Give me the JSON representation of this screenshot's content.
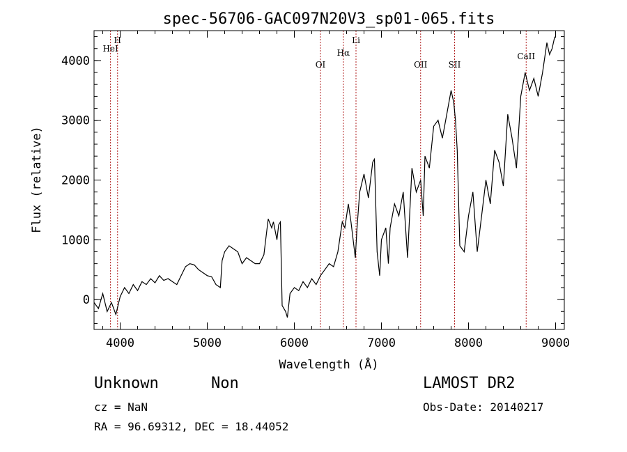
{
  "chart_data": {
    "type": "line",
    "title": "spec-56706-GAC097N20V3_sp01-065.fits",
    "xlabel": "Wavelength (Å)",
    "ylabel": "Flux (relative)",
    "xlim": [
      3700,
      9100
    ],
    "ylim": [
      -500,
      4500
    ],
    "xticks": [
      4000,
      5000,
      6000,
      7000,
      8000,
      9000
    ],
    "yticks": [
      0,
      1000,
      2000,
      3000,
      4000
    ],
    "grid": false,
    "line_color": "#000000",
    "marker_color": "#b22222",
    "x": [
      3700,
      3750,
      3800,
      3850,
      3900,
      3950,
      4000,
      4050,
      4100,
      4150,
      4200,
      4250,
      4300,
      4350,
      4400,
      4450,
      4500,
      4550,
      4600,
      4650,
      4700,
      4750,
      4800,
      4850,
      4900,
      4950,
      5000,
      5050,
      5100,
      5150,
      5170,
      5200,
      5250,
      5300,
      5350,
      5400,
      5450,
      5500,
      5550,
      5600,
      5650,
      5700,
      5740,
      5760,
      5800,
      5820,
      5840,
      5860,
      5900,
      5920,
      5950,
      6000,
      6050,
      6100,
      6150,
      6200,
      6250,
      6300,
      6350,
      6400,
      6450,
      6500,
      6550,
      6580,
      6620,
      6650,
      6700,
      6720,
      6750,
      6800,
      6850,
      6900,
      6920,
      6950,
      6980,
      7000,
      7050,
      7080,
      7100,
      7150,
      7200,
      7250,
      7300,
      7350,
      7400,
      7450,
      7480,
      7500,
      7550,
      7600,
      7650,
      7700,
      7750,
      7800,
      7830,
      7850,
      7870,
      7900,
      7950,
      8000,
      8050,
      8100,
      8150,
      8200,
      8250,
      8300,
      8350,
      8400,
      8450,
      8500,
      8550,
      8600,
      8650,
      8700,
      8750,
      8800,
      8850,
      8900,
      8930,
      8960,
      8990
    ],
    "y": [
      -50,
      -150,
      100,
      -200,
      -50,
      -250,
      50,
      200,
      100,
      250,
      150,
      300,
      250,
      350,
      280,
      400,
      320,
      350,
      300,
      250,
      400,
      550,
      600,
      580,
      500,
      450,
      400,
      380,
      250,
      200,
      650,
      800,
      900,
      850,
      800,
      600,
      700,
      650,
      600,
      600,
      750,
      1350,
      1200,
      1300,
      1000,
      1250,
      1300,
      -100,
      -200,
      -300,
      100,
      200,
      150,
      300,
      200,
      350,
      250,
      400,
      500,
      600,
      550,
      800,
      1300,
      1200,
      1600,
      1300,
      700,
      1200,
      1800,
      2100,
      1700,
      2300,
      2350,
      800,
      400,
      1000,
      1200,
      600,
      1200,
      1600,
      1400,
      1800,
      700,
      2200,
      1800,
      2000,
      1400,
      2400,
      2200,
      2900,
      3000,
      2700,
      3100,
      3500,
      3300,
      3000,
      2500,
      900,
      800,
      1400,
      1800,
      800,
      1400,
      2000,
      1600,
      2500,
      2300,
      1900,
      3100,
      2700,
      2200,
      3400,
      3800,
      3500,
      3700,
      3400,
      3800,
      4300,
      4100,
      4200,
      4400
    ],
    "lines": [
      {
        "label": "HeI",
        "x": 3889
      },
      {
        "label": "H",
        "x": 3970
      },
      {
        "label": "OI",
        "x": 6300
      },
      {
        "label": "Hα",
        "x": 6563
      },
      {
        "label": "Li",
        "x": 6708
      },
      {
        "label": "OII",
        "x": 7450
      },
      {
        "label": "SII",
        "x": 7840
      },
      {
        "label": "CaII",
        "x": 8662
      }
    ]
  },
  "info": {
    "class": "Unknown",
    "subclass": "Non",
    "cz": "cz = NaN",
    "radec": "RA =  96.69312, DEC =  18.44052",
    "survey": "LAMOST DR2",
    "obsdate": "Obs-Date: 20140217"
  }
}
